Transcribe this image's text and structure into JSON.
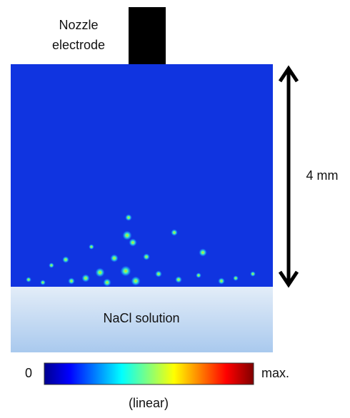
{
  "nozzle_label": [
    "Nozzle",
    "electrode"
  ],
  "scale_label": "4 mm",
  "solution_label": "NaCl solution",
  "colorbar": {
    "min_label": "0",
    "max_label": "max.",
    "scale_label": "(linear)"
  }
}
